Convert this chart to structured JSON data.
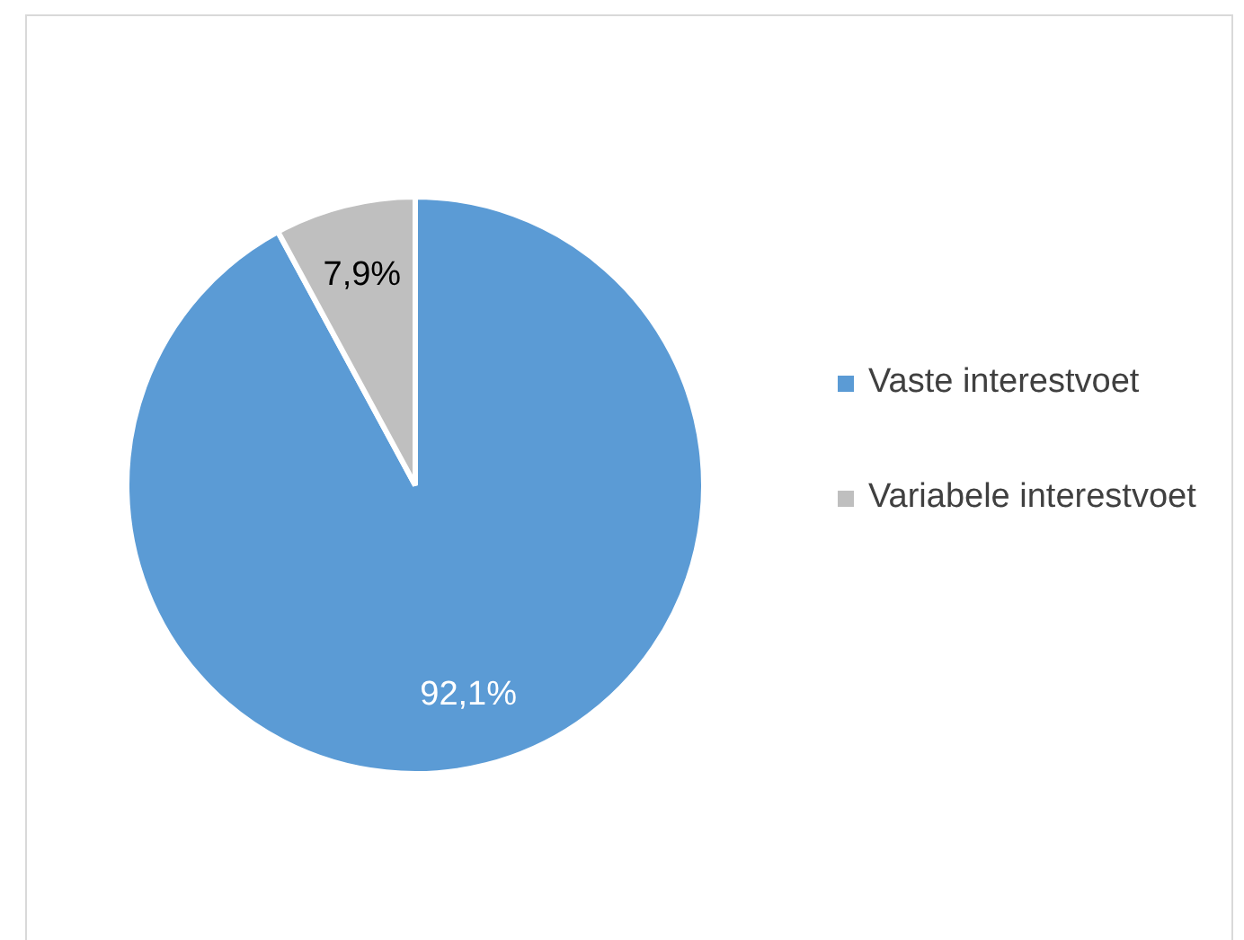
{
  "chart_data": {
    "type": "pie",
    "categories": [
      "Vaste interestvoet",
      "Variabele interestvoet"
    ],
    "values": [
      92.1,
      7.9
    ],
    "colors": [
      "#5b9bd5",
      "#bfbfbf"
    ],
    "value_labels": [
      "92,1%",
      "7,9%"
    ],
    "legend": "right"
  }
}
